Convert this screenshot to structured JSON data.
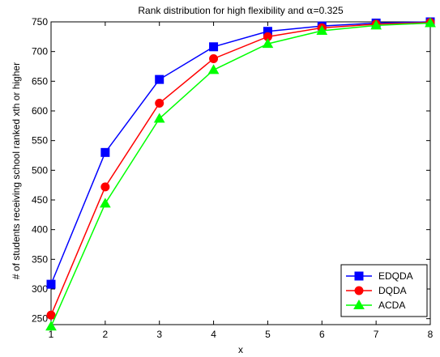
{
  "chart_data": {
    "type": "line",
    "title_prefix": "Rank distribution for high flexibility and ",
    "title_symbol": "α",
    "title_suffix": "=0.325",
    "xlabel": "x",
    "ylabel": "# of students receiving school ranked xth or higher",
    "x": [
      1,
      2,
      3,
      4,
      5,
      6,
      7,
      8
    ],
    "xlim": [
      1,
      8
    ],
    "ylim": [
      240,
      750
    ],
    "xticks": [
      1,
      2,
      3,
      4,
      5,
      6,
      7,
      8
    ],
    "yticks": [
      250,
      300,
      350,
      400,
      450,
      500,
      550,
      600,
      650,
      700,
      750
    ],
    "grid": false,
    "legend_position": "bottom-right",
    "series": [
      {
        "name": "EDQDA",
        "color": "#0000ff",
        "marker": "square",
        "values": [
          308,
          530,
          653,
          708,
          734,
          743,
          748,
          750
        ]
      },
      {
        "name": "DQDA",
        "color": "#ff0000",
        "marker": "circle",
        "values": [
          256,
          472,
          613,
          688,
          725,
          740,
          746,
          749
        ]
      },
      {
        "name": "ACDA",
        "color": "#00ff00",
        "marker": "triangle",
        "values": [
          237,
          444,
          587,
          669,
          713,
          735,
          744,
          748
        ]
      }
    ]
  }
}
